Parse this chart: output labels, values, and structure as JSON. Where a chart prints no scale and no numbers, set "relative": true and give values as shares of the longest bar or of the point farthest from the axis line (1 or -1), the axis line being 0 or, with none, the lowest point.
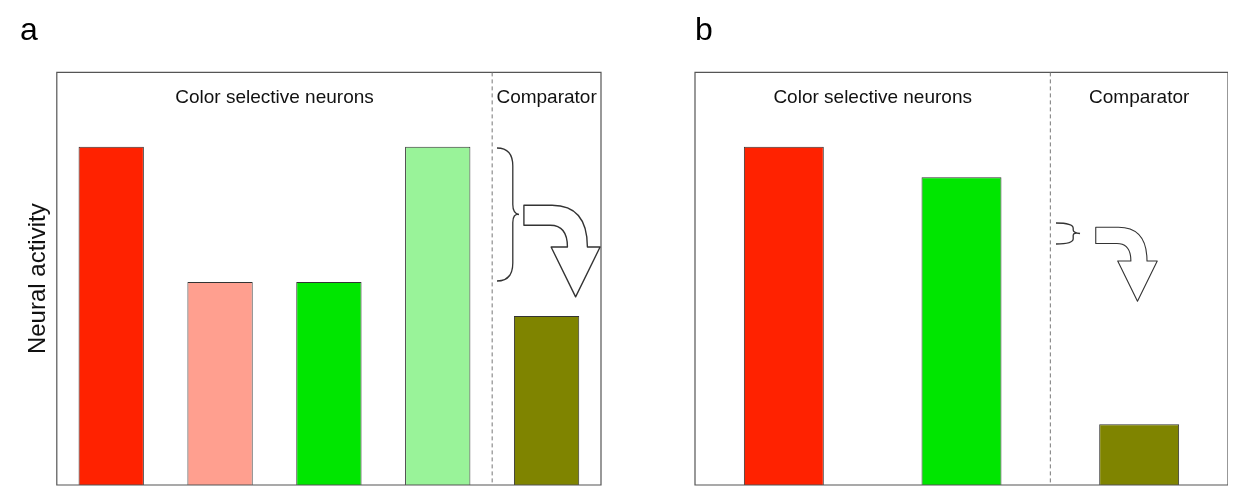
{
  "chart_data": [
    {
      "type": "bar",
      "title": "a",
      "ylabel": "Neural activity",
      "relative": true,
      "categories": [
        null,
        null,
        null,
        null,
        null
      ],
      "values": [
        1,
        0.6,
        0.6,
        1,
        0.5
      ],
      "colors": [
        "#ff2200",
        "#ff9f8f",
        "#00e600",
        "#99f399",
        "#7f8400"
      ],
      "annotations": [
        "Color selective neurons",
        "Comparator"
      ]
    },
    {
      "type": "bar",
      "title": "b",
      "relative": true,
      "categories": [
        null,
        null,
        null
      ],
      "values": [
        1,
        0.91,
        0.18
      ],
      "colors": [
        "#ff2200",
        "#00e600",
        "#7f8400"
      ],
      "annotations": [
        "Color selective neurons",
        "Comparator"
      ]
    }
  ]
}
